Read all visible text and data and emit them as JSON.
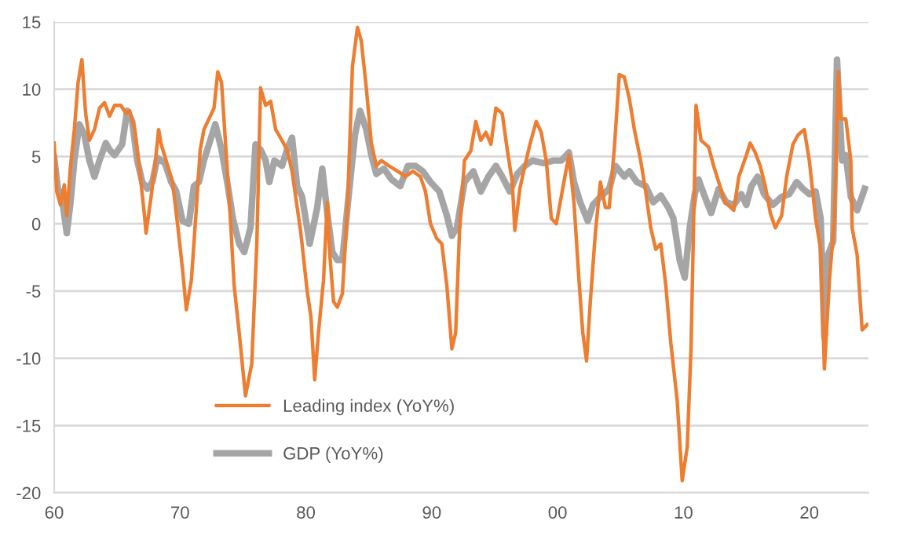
{
  "chart_data": {
    "type": "line",
    "xlim": [
      1960,
      2024.7
    ],
    "xticks": [
      {
        "value": 1960,
        "label": "60"
      },
      {
        "value": 1970,
        "label": "70"
      },
      {
        "value": 1980,
        "label": "80"
      },
      {
        "value": 1990,
        "label": "90"
      },
      {
        "value": 2000,
        "label": "00"
      },
      {
        "value": 2010,
        "label": "10"
      },
      {
        "value": 2020,
        "label": "20"
      }
    ],
    "ylim": [
      -20,
      15
    ],
    "yticks": [
      -20,
      -15,
      -10,
      -5,
      0,
      5,
      10,
      15
    ],
    "grid": "y",
    "legend": "bottom left",
    "marker": "none",
    "line_style": "solid",
    "series": [
      {
        "name": "Leading index (YoY%)",
        "color": "#ed7d31",
        "x": [
          1960.0,
          1960.2,
          1960.5,
          1960.8,
          1961.0,
          1961.3,
          1961.6,
          1961.9,
          1962.2,
          1962.5,
          1962.8,
          1963.2,
          1963.6,
          1964.0,
          1964.4,
          1964.8,
          1965.3,
          1965.7,
          1966.0,
          1966.4,
          1966.8,
          1967.2,
          1967.3,
          1967.7,
          1968.0,
          1968.3,
          1968.5,
          1968.9,
          1969.4,
          1969.8,
          1970.2,
          1970.5,
          1970.9,
          1971.3,
          1971.6,
          1971.9,
          1972.3,
          1972.7,
          1973.0,
          1973.3,
          1973.6,
          1974.0,
          1974.3,
          1974.7,
          1975.2,
          1975.7,
          1976.1,
          1976.4,
          1976.8,
          1977.2,
          1977.6,
          1978.1,
          1978.5,
          1978.9,
          1979.6,
          1980.1,
          1980.4,
          1980.7,
          1981.0,
          1981.4,
          1981.7,
          1981.9,
          1982.2,
          1982.5,
          1982.9,
          1983.3,
          1983.7,
          1984.1,
          1984.4,
          1984.8,
          1985.2,
          1985.6,
          1986.0,
          1986.6,
          1987.3,
          1987.9,
          1988.5,
          1989.1,
          1989.5,
          1989.9,
          1990.4,
          1990.8,
          1991.2,
          1991.6,
          1991.9,
          1992.2,
          1992.6,
          1993.1,
          1993.5,
          1993.9,
          1994.3,
          1994.7,
          1995.1,
          1995.6,
          1996.0,
          1996.4,
          1996.6,
          1997.0,
          1997.4,
          1997.8,
          1998.3,
          1998.7,
          1999.1,
          1999.5,
          1999.9,
          2000.5,
          2000.9,
          2001.3,
          2001.7,
          2002.0,
          2002.3,
          2002.6,
          2003.0,
          2003.4,
          2003.8,
          2004.1,
          2004.5,
          2004.9,
          2005.3,
          2005.7,
          2006.1,
          2006.6,
          2007.0,
          2007.4,
          2007.8,
          2008.2,
          2008.6,
          2009.0,
          2009.5,
          2009.9,
          2010.3,
          2010.6,
          2011.0,
          2011.4,
          2012.0,
          2012.4,
          2012.8,
          2013.3,
          2014.0,
          2014.4,
          2015.0,
          2015.3,
          2015.7,
          2016.1,
          2016.5,
          2016.9,
          2017.3,
          2017.8,
          2018.2,
          2018.7,
          2019.1,
          2019.6,
          2020.0,
          2020.5,
          2020.9,
          2021.2,
          2021.6,
          2022.0,
          2022.3,
          2022.5,
          2022.9,
          2023.3,
          2023.4,
          2023.8,
          2024.2,
          2024.6
        ],
        "values": [
          6.0,
          2.4,
          1.4,
          2.9,
          0.6,
          4.3,
          7.0,
          10.5,
          12.2,
          8.2,
          6.2,
          7.0,
          8.6,
          9.0,
          8.0,
          8.8,
          8.8,
          8.2,
          8.4,
          7.0,
          3.9,
          0.4,
          -0.7,
          2.0,
          4.3,
          7.0,
          5.9,
          4.7,
          3.1,
          0.0,
          -3.4,
          -6.4,
          -4.2,
          1.2,
          5.5,
          7.0,
          7.8,
          8.6,
          11.3,
          10.5,
          6.2,
          0.4,
          -4.6,
          -8.1,
          -12.8,
          -10.4,
          -1.5,
          10.1,
          8.8,
          9.1,
          7.0,
          6.2,
          5.5,
          3.9,
          -0.7,
          -5.0,
          -6.9,
          -11.6,
          -8.1,
          -4.2,
          1.6,
          -2.3,
          -5.8,
          -6.2,
          -5.2,
          1.2,
          11.7,
          14.6,
          13.6,
          10.1,
          6.0,
          4.3,
          4.7,
          4.3,
          3.9,
          3.5,
          3.9,
          3.5,
          2.4,
          0.0,
          -1.1,
          -1.5,
          -4.6,
          -9.3,
          -8.1,
          -0.7,
          4.7,
          5.4,
          7.6,
          6.2,
          6.8,
          5.9,
          8.6,
          8.2,
          5.5,
          3.1,
          -0.5,
          2.6,
          4.3,
          5.9,
          7.6,
          6.8,
          4.7,
          0.4,
          0.0,
          3.1,
          5.1,
          1.6,
          -4.2,
          -8.1,
          -10.2,
          -5.8,
          -0.7,
          3.1,
          1.2,
          1.2,
          5.5,
          11.1,
          10.9,
          9.3,
          7.0,
          4.7,
          2.4,
          -0.3,
          -1.9,
          -1.5,
          -4.6,
          -8.9,
          -13.1,
          -19.1,
          -16.6,
          -9.3,
          8.8,
          6.2,
          5.7,
          4.3,
          3.1,
          1.6,
          1.0,
          3.5,
          5.1,
          6.0,
          5.3,
          4.3,
          2.8,
          0.8,
          -0.3,
          0.6,
          3.5,
          5.9,
          6.6,
          7.0,
          4.7,
          0.4,
          -1.9,
          -10.8,
          -4.2,
          0.4,
          11.3,
          7.8,
          7.8,
          4.7,
          -0.3,
          -2.3,
          -7.9,
          -7.5
        ]
      },
      {
        "name": "GDP (YoY%)",
        "color": "#a5a5a5",
        "x": [
          1960.0,
          1960.3,
          1960.6,
          1961.0,
          1961.3,
          1961.6,
          1962.0,
          1962.4,
          1962.8,
          1963.2,
          1963.6,
          1964.1,
          1964.4,
          1964.8,
          1965.4,
          1965.8,
          1966.2,
          1966.6,
          1967.0,
          1967.4,
          1967.8,
          1968.2,
          1968.8,
          1969.3,
          1969.7,
          1970.2,
          1970.7,
          1971.1,
          1971.5,
          1971.9,
          1972.3,
          1972.8,
          1973.3,
          1973.8,
          1974.2,
          1974.7,
          1975.1,
          1975.6,
          1976.0,
          1976.4,
          1976.8,
          1977.1,
          1977.5,
          1978.1,
          1978.5,
          1978.9,
          1979.3,
          1979.7,
          1980.3,
          1980.9,
          1981.3,
          1981.7,
          1982.1,
          1982.5,
          1982.9,
          1983.3,
          1983.9,
          1984.3,
          1984.8,
          1985.2,
          1985.6,
          1986.2,
          1986.8,
          1987.5,
          1988.1,
          1988.7,
          1989.3,
          1989.9,
          1990.6,
          1991.2,
          1991.6,
          1992.0,
          1992.6,
          1993.3,
          1993.9,
          1994.5,
          1995.1,
          1995.6,
          1996.2,
          1996.8,
          1997.4,
          1998.0,
          1998.9,
          1999.7,
          2000.3,
          2000.9,
          2001.3,
          2001.8,
          2002.4,
          2002.8,
          2003.4,
          2004.1,
          2004.6,
          2005.3,
          2005.7,
          2006.3,
          2007.0,
          2007.6,
          2008.2,
          2008.8,
          2009.2,
          2009.7,
          2010.1,
          2010.5,
          2010.9,
          2011.2,
          2011.7,
          2012.2,
          2012.8,
          2013.4,
          2014.0,
          2014.6,
          2015.0,
          2015.4,
          2015.9,
          2016.4,
          2017.1,
          2017.8,
          2018.4,
          2019.0,
          2019.5,
          2020.0,
          2020.5,
          2020.9,
          2021.2,
          2021.5,
          2021.9,
          2022.2,
          2022.6,
          2022.9,
          2023.3,
          2023.8,
          2024.4
        ],
        "values": [
          4.9,
          2.6,
          2.0,
          -0.7,
          1.6,
          4.7,
          7.4,
          6.6,
          4.7,
          3.5,
          4.7,
          6.0,
          5.5,
          5.1,
          5.9,
          8.4,
          7.6,
          4.7,
          3.1,
          2.6,
          3.1,
          4.9,
          4.5,
          3.1,
          2.4,
          0.2,
          0.0,
          2.8,
          3.1,
          4.7,
          5.9,
          7.4,
          5.5,
          2.8,
          0.4,
          -1.5,
          -2.1,
          -0.3,
          5.9,
          5.5,
          4.7,
          3.1,
          4.7,
          4.3,
          5.5,
          6.4,
          2.8,
          2.0,
          -1.5,
          1.2,
          4.1,
          0.8,
          -2.1,
          -2.7,
          -2.7,
          1.2,
          6.6,
          8.4,
          7.0,
          5.1,
          3.7,
          4.1,
          3.3,
          2.8,
          4.3,
          4.3,
          3.9,
          3.1,
          2.4,
          0.6,
          -0.9,
          -0.3,
          3.1,
          3.9,
          2.4,
          3.5,
          4.3,
          3.5,
          2.4,
          3.7,
          4.3,
          4.7,
          4.5,
          4.7,
          4.7,
          5.3,
          3.1,
          1.6,
          0.2,
          1.4,
          2.0,
          2.6,
          4.3,
          3.5,
          3.9,
          3.1,
          2.8,
          1.6,
          2.1,
          1.2,
          0.4,
          -2.7,
          -4.0,
          -0.3,
          2.2,
          3.3,
          2.0,
          0.8,
          2.6,
          1.6,
          1.4,
          2.2,
          1.4,
          2.8,
          3.5,
          2.2,
          1.4,
          2.0,
          2.2,
          3.1,
          2.6,
          2.2,
          2.4,
          0.4,
          -8.5,
          -2.3,
          -1.3,
          12.2,
          4.7,
          5.1,
          2.0,
          1.0,
          2.6
        ]
      }
    ]
  }
}
